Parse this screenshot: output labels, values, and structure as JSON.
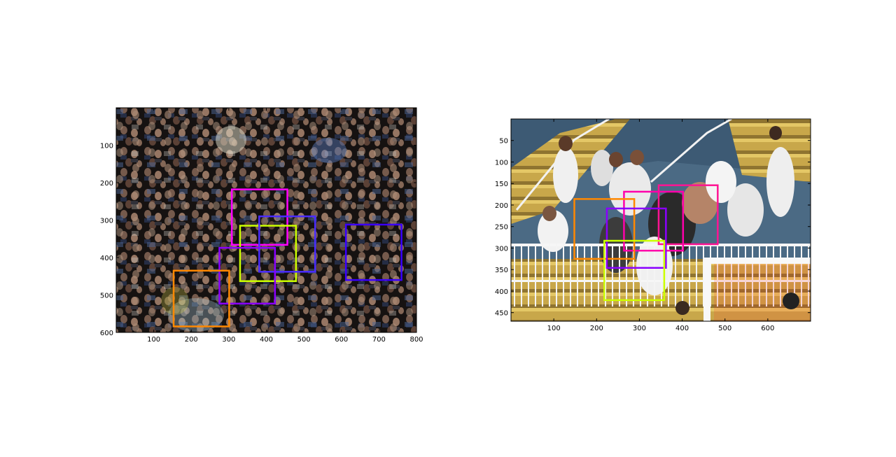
{
  "panels": [
    {
      "name": "crowd-dense",
      "x_range": [
        0,
        800
      ],
      "y_range": [
        0,
        600
      ],
      "x_ticks": [
        100,
        200,
        300,
        400,
        500,
        600,
        700,
        800
      ],
      "y_ticks": [
        100,
        200,
        300,
        400,
        500,
        600
      ],
      "x_tick_labels": [
        "100",
        "200",
        "300",
        "400",
        "500",
        "600",
        "700",
        "800"
      ],
      "y_tick_labels": [
        "100",
        "200",
        "300",
        "400",
        "500",
        "600"
      ],
      "scene": "dense crowd, dark background",
      "boxes": [
        {
          "color": "#ff00ff",
          "x0": 308,
          "y0": 218,
          "x1": 456,
          "y1": 366
        },
        {
          "color": "#ccff00",
          "x0": 330,
          "y0": 315,
          "x1": 479,
          "y1": 463
        },
        {
          "color": "#4a2bff",
          "x0": 381,
          "y0": 290,
          "x1": 530,
          "y1": 438
        },
        {
          "color": "#3a00ff",
          "x0": 612,
          "y0": 312,
          "x1": 760,
          "y1": 460
        },
        {
          "color": "#8a00ff",
          "x0": 275,
          "y0": 374,
          "x1": 423,
          "y1": 523
        },
        {
          "color": "#ff8800",
          "x0": 153,
          "y0": 435,
          "x1": 301,
          "y1": 584
        }
      ]
    },
    {
      "name": "stadium-fans",
      "x_range": [
        0,
        700
      ],
      "y_range": [
        0,
        470
      ],
      "x_ticks": [
        100,
        200,
        300,
        400,
        500,
        600
      ],
      "y_ticks": [
        50,
        100,
        150,
        200,
        250,
        300,
        350,
        400,
        450
      ],
      "x_tick_labels": [
        "100",
        "200",
        "300",
        "400",
        "500",
        "600"
      ],
      "y_tick_labels": [
        "50",
        "100",
        "150",
        "200",
        "250",
        "300",
        "350",
        "400",
        "450"
      ],
      "scene": "stadium stands with fans in white shirts",
      "boxes": [
        {
          "color": "#ff1493",
          "x0": 345,
          "y0": 154,
          "x1": 483,
          "y1": 291
        },
        {
          "color": "#ff00aa",
          "x0": 264,
          "y0": 169,
          "x1": 402,
          "y1": 306
        },
        {
          "color": "#ff8800",
          "x0": 148,
          "y0": 186,
          "x1": 288,
          "y1": 325
        },
        {
          "color": "#8a00ff",
          "x0": 224,
          "y0": 208,
          "x1": 362,
          "y1": 346
        },
        {
          "color": "#ccff00",
          "x0": 218,
          "y0": 283,
          "x1": 358,
          "y1": 421
        }
      ]
    }
  ]
}
